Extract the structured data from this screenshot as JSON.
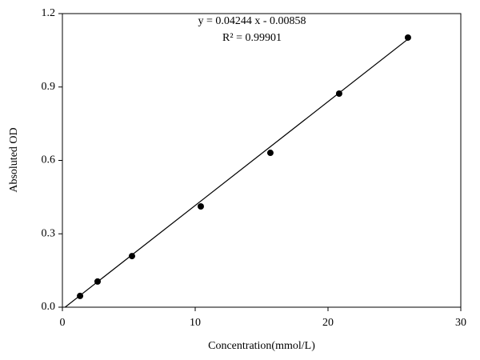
{
  "chart_data": {
    "type": "scatter",
    "x_label": "Concentration(mmol/L)",
    "y_label": "Absoluted OD",
    "annotations": [
      "y = 0.04244 x - 0.00858",
      "R² = 0.99901"
    ],
    "series": [
      {
        "color": "#000000",
        "x": [
          1.33,
          2.65,
          5.24,
          10.42,
          15.66,
          20.84,
          26.02
        ],
        "values": [
          0.046,
          0.105,
          0.209,
          0.412,
          0.631,
          0.873,
          1.102
        ]
      }
    ],
    "xlim": [
      0,
      30
    ],
    "xticks": [
      0,
      10,
      20,
      30
    ],
    "ylim": [
      0,
      1.2
    ],
    "yticks": [
      {
        "value": 0,
        "label": "0.0"
      },
      0.3,
      0.6,
      0.9,
      1.2
    ]
  }
}
